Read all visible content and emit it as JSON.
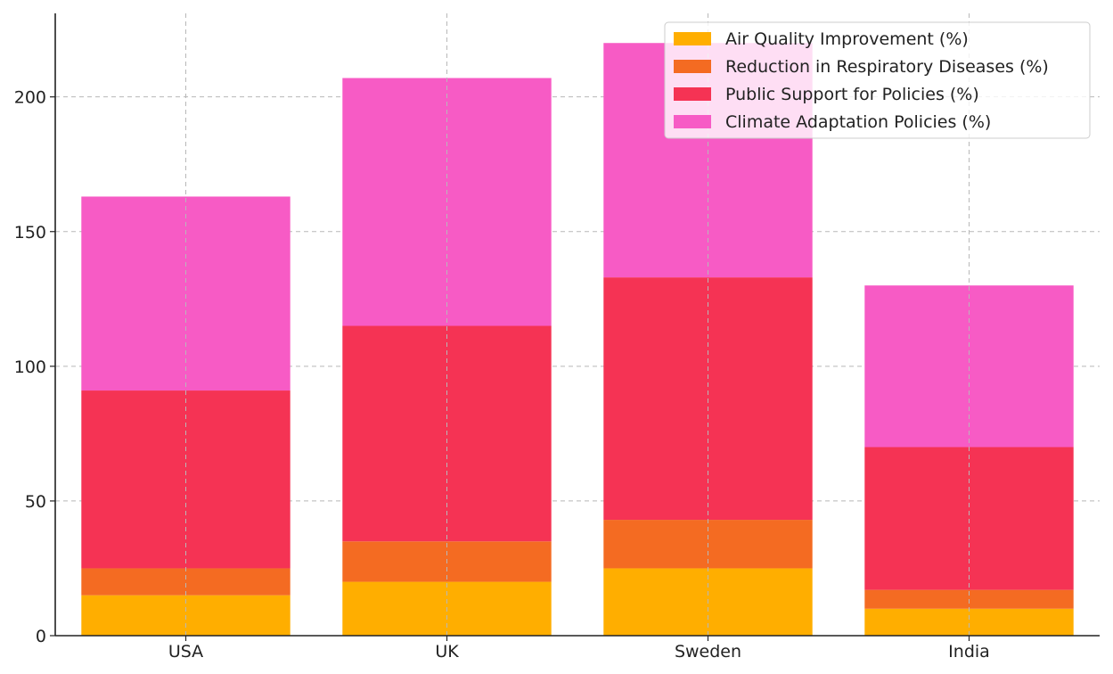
{
  "chart_data": {
    "type": "bar",
    "stacked": true,
    "categories": [
      "USA",
      "UK",
      "Sweden",
      "India"
    ],
    "series": [
      {
        "name": "Air Quality Improvement (%)",
        "values": [
          15,
          20,
          25,
          10
        ],
        "color": "#FFAE00"
      },
      {
        "name": "Reduction in Respiratory Diseases (%)",
        "values": [
          10,
          15,
          18,
          7
        ],
        "color": "#F46B22"
      },
      {
        "name": "Public Support for Policies (%)",
        "values": [
          66,
          80,
          90,
          53
        ],
        "color": "#F53354"
      },
      {
        "name": "Climate Adaptation Policies (%)",
        "values": [
          72,
          92,
          87,
          60
        ],
        "color": "#F75BC5"
      }
    ],
    "ylim": [
      0,
      231
    ],
    "yticks": [
      "0",
      "50",
      "100",
      "150",
      "200"
    ],
    "grid": true,
    "legend_position": "top-right",
    "title": "",
    "xlabel": "",
    "ylabel": ""
  }
}
